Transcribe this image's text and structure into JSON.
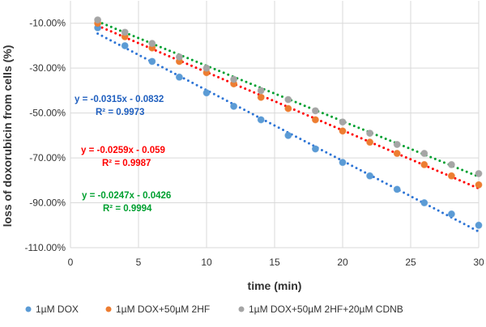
{
  "chart_data": {
    "type": "scatter",
    "title": "",
    "xlabel": "time (min)",
    "ylabel": "loss of doxorubicin from cells (%)",
    "xlim": [
      0,
      30
    ],
    "ylim": [
      -110,
      0
    ],
    "xticks": [
      "0",
      "5",
      "10",
      "15",
      "20",
      "25",
      "30"
    ],
    "xtick_values": [
      0,
      5,
      10,
      15,
      20,
      25,
      30
    ],
    "yticks": [
      "-10.00%",
      "-30.00%",
      "-50.00%",
      "-70.00%",
      "-90.00%",
      "-110.00%"
    ],
    "ytick_values": [
      -10,
      -30,
      -50,
      -70,
      -90,
      -110
    ],
    "grid": true,
    "legend_position": "bottom",
    "x": [
      2,
      4,
      6,
      8,
      10,
      12,
      14,
      16,
      18,
      20,
      22,
      24,
      26,
      28,
      30
    ],
    "series": [
      {
        "name": "1µM DOX",
        "color": "#5b9bd5",
        "trend_color": "#2e75d6",
        "values": [
          -12,
          -20,
          -27,
          -34,
          -41,
          -47,
          -53,
          -60,
          -66,
          -72,
          -78,
          -84,
          -90,
          -95,
          -100
        ],
        "trendline": {
          "slope": -0.0315,
          "intercept": -0.0832,
          "equation": "y = -0.0315x - 0.0832",
          "r2": "R² = 0.9973",
          "label_color": "#1f5fbf"
        }
      },
      {
        "name": "1µM DOX+50µM 2HF",
        "color": "#ed7d31",
        "trend_color": "#ff0000",
        "values": [
          -10,
          -16,
          -21,
          -27,
          -32,
          -37,
          -43,
          -48,
          -53,
          -58,
          -63,
          -68,
          -73,
          -78,
          -82
        ],
        "trendline": {
          "slope": -0.0259,
          "intercept": -0.059,
          "equation": "y = -0.0259x - 0.059",
          "r2": "R² = 0.9987",
          "label_color": "#ff0000"
        }
      },
      {
        "name": "1µM DOX+50µM 2HF+20µM CDNB",
        "color": "#a5a5a5",
        "trend_color": "#00a030",
        "values": [
          -8.5,
          -14,
          -19,
          -25,
          -30,
          -35,
          -40,
          -44,
          -49,
          -54,
          -59,
          -64,
          -68,
          -73,
          -77
        ],
        "trendline": {
          "slope": -0.0247,
          "intercept": -0.0426,
          "equation": "y = -0.0247x - 0.0426",
          "r2": "R² = 0.9994",
          "label_color": "#00a030"
        }
      }
    ]
  }
}
